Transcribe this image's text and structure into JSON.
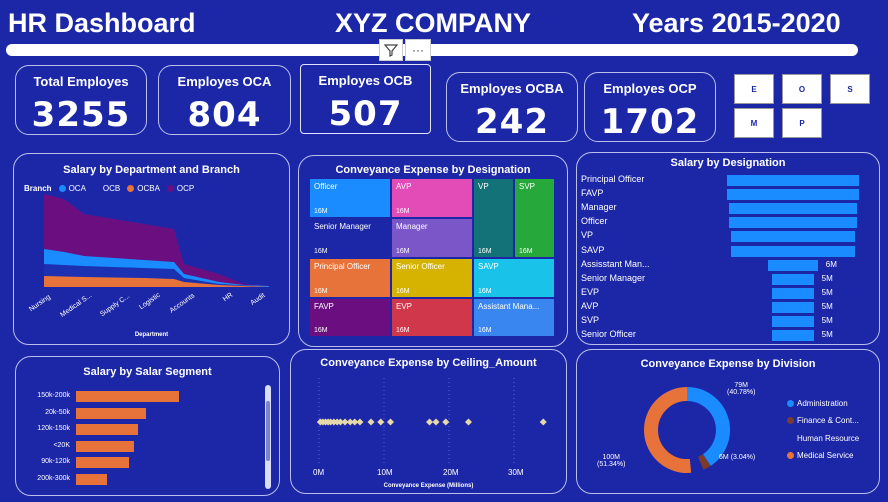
{
  "header": {
    "left_title": "HR Dashboard",
    "center_title": "XYZ COMPANY",
    "right_title": "Years 2015-2020"
  },
  "slider": {
    "filter_icon": "filter-icon",
    "more_label": "···"
  },
  "kpis": [
    {
      "label": "Total Employes",
      "value": "3255"
    },
    {
      "label": "Employes OCA",
      "value": "804"
    },
    {
      "label": "Employes OCB",
      "value": "507"
    },
    {
      "label": "Employes OCBA",
      "value": "242"
    },
    {
      "label": "Employes OCP",
      "value": "1702"
    }
  ],
  "slicer": {
    "buttons": [
      "E",
      "O",
      "S",
      "M",
      "P"
    ]
  },
  "colors": {
    "background": "#1c27a8",
    "oca": "#1a8cff",
    "ocb": "#1c27a8",
    "ocba": "#e8733a",
    "ocp": "#6b0f80",
    "accent": "#1a8cff",
    "segment": "#e8733a"
  },
  "panels": {
    "dept": {
      "title": "Salary by Department and Branch",
      "legend_title": "Branch",
      "legend": [
        "OCA",
        "OCB",
        "OCBA",
        "OCP"
      ],
      "xlabel": "Department",
      "categories": [
        "Nursing",
        "Medical S...",
        "Supply C...",
        "Logistic",
        "Accounts",
        "HR",
        "Audit"
      ]
    },
    "treemap": {
      "title": "Conveyance Expense by Designation",
      "cells": [
        {
          "label": "Officer",
          "value": "16M",
          "color": "#1a8cff"
        },
        {
          "label": "AVP",
          "value": "16M",
          "color": "#e34bb6"
        },
        {
          "label": "VP",
          "value": "16M",
          "color": "#137278"
        },
        {
          "label": "SVP",
          "value": "16M",
          "color": "#27a83a"
        },
        {
          "label": "Senior Manager",
          "value": "16M",
          "color": "#1c27a8"
        },
        {
          "label": "Manager",
          "value": "16M",
          "color": "#7a56c9"
        },
        {
          "label": "Principal Officer",
          "value": "16M",
          "color": "#e8733a"
        },
        {
          "label": "Senior Officer",
          "value": "16M",
          "color": "#d6b300"
        },
        {
          "label": "SAVP",
          "value": "16M",
          "color": "#19c2e8"
        },
        {
          "label": "FAVP",
          "value": "16M",
          "color": "#6b0f80"
        },
        {
          "label": "EVP",
          "value": "16M",
          "color": "#d0374a"
        },
        {
          "label": "Assistant Mana...",
          "value": "16M",
          "color": "#3a86f0"
        }
      ]
    },
    "designation": {
      "title": "Salary by Designation",
      "rows": [
        {
          "label": "Principal Officer",
          "value": ""
        },
        {
          "label": "FAVP",
          "value": ""
        },
        {
          "label": "Manager",
          "value": ""
        },
        {
          "label": "Officer",
          "value": ""
        },
        {
          "label": "VP",
          "value": ""
        },
        {
          "label": "SAVP",
          "value": ""
        },
        {
          "label": "Assisstant Man...",
          "value": "6M"
        },
        {
          "label": "Senior Manager",
          "value": "5M"
        },
        {
          "label": "EVP",
          "value": "5M"
        },
        {
          "label": "AVP",
          "value": "5M"
        },
        {
          "label": "SVP",
          "value": "5M"
        },
        {
          "label": "Senior Officer",
          "value": "5M"
        }
      ]
    },
    "segment": {
      "title": "Salary by Salar Segment",
      "rows": [
        {
          "label": "150k-200k",
          "value": 1.0
        },
        {
          "label": "20k-50k",
          "value": 0.68
        },
        {
          "label": "120k-150k",
          "value": 0.6
        },
        {
          "label": "<20K",
          "value": 0.56
        },
        {
          "label": "90k-120k",
          "value": 0.51
        },
        {
          "label": "200k-300k",
          "value": 0.3
        }
      ]
    },
    "ceiling": {
      "title": "Conveyance Expense by Ceiling_Amount",
      "xlabel": "Conveyance Expense (Millions)",
      "ticks": [
        "0M",
        "10M",
        "20M",
        "30M"
      ]
    },
    "division": {
      "title": "Conveyance Expense by Division",
      "labels": [
        {
          "value": "79M",
          "pct": "(40.78%)"
        },
        {
          "value": "6M",
          "pct": "(3.04%)"
        },
        {
          "value": "100M",
          "pct": "(51.34%)"
        }
      ],
      "legend": [
        {
          "label": "Administration",
          "color": "#1a8cff"
        },
        {
          "label": "Finance & Cont...",
          "color": "#7a3b2e"
        },
        {
          "label": "Human Resource",
          "color": "#1c27a8"
        },
        {
          "label": "Medical Service",
          "color": "#e8733a"
        }
      ]
    }
  },
  "chart_data": [
    {
      "type": "area",
      "title": "Salary by Department and Branch",
      "xlabel": "Department",
      "categories": [
        "Nursing",
        "Medical S...",
        "Supply C...",
        "Logistic",
        "Accounts",
        "HR",
        "Audit"
      ],
      "series": [
        {
          "name": "OCA",
          "values": [
            12,
            10,
            10,
            7,
            3,
            1,
            1
          ]
        },
        {
          "name": "OCB",
          "values": [
            6,
            5,
            5,
            3,
            1,
            0.5,
            0.5
          ]
        },
        {
          "name": "OCBA",
          "values": [
            3,
            3,
            3,
            2,
            1,
            0.5,
            0.3
          ]
        },
        {
          "name": "OCP",
          "values": [
            26,
            20,
            18,
            6,
            3,
            2,
            1
          ]
        }
      ]
    },
    {
      "type": "bar",
      "title": "Salary by Designation",
      "categories": [
        "Principal Officer",
        "FAVP",
        "Manager",
        "Officer",
        "VP",
        "SAVP",
        "Assisstant Man...",
        "Senior Manager",
        "EVP",
        "AVP",
        "SVP",
        "Senior Officer"
      ],
      "values": [
        16,
        16,
        15.5,
        15.5,
        15,
        15,
        6,
        5,
        5,
        5,
        5,
        5
      ]
    },
    {
      "type": "scatter",
      "title": "Conveyance Expense by Ceiling_Amount",
      "xlabel": "Conveyance Expense (Millions)",
      "x": [
        0.2,
        0.6,
        1,
        1.4,
        1.8,
        2.3,
        2.8,
        3.3,
        4,
        4.8,
        5.5,
        6.3,
        8,
        9.5,
        11,
        17,
        18,
        19.5,
        23,
        34.5
      ],
      "xlim": [
        0,
        35
      ]
    },
    {
      "type": "pie",
      "title": "Conveyance Expense by Division",
      "categories": [
        "Administration",
        "Finance & Cont...",
        "Human Resource",
        "Medical Service"
      ],
      "values": [
        79,
        6,
        9,
        100
      ]
    }
  ]
}
